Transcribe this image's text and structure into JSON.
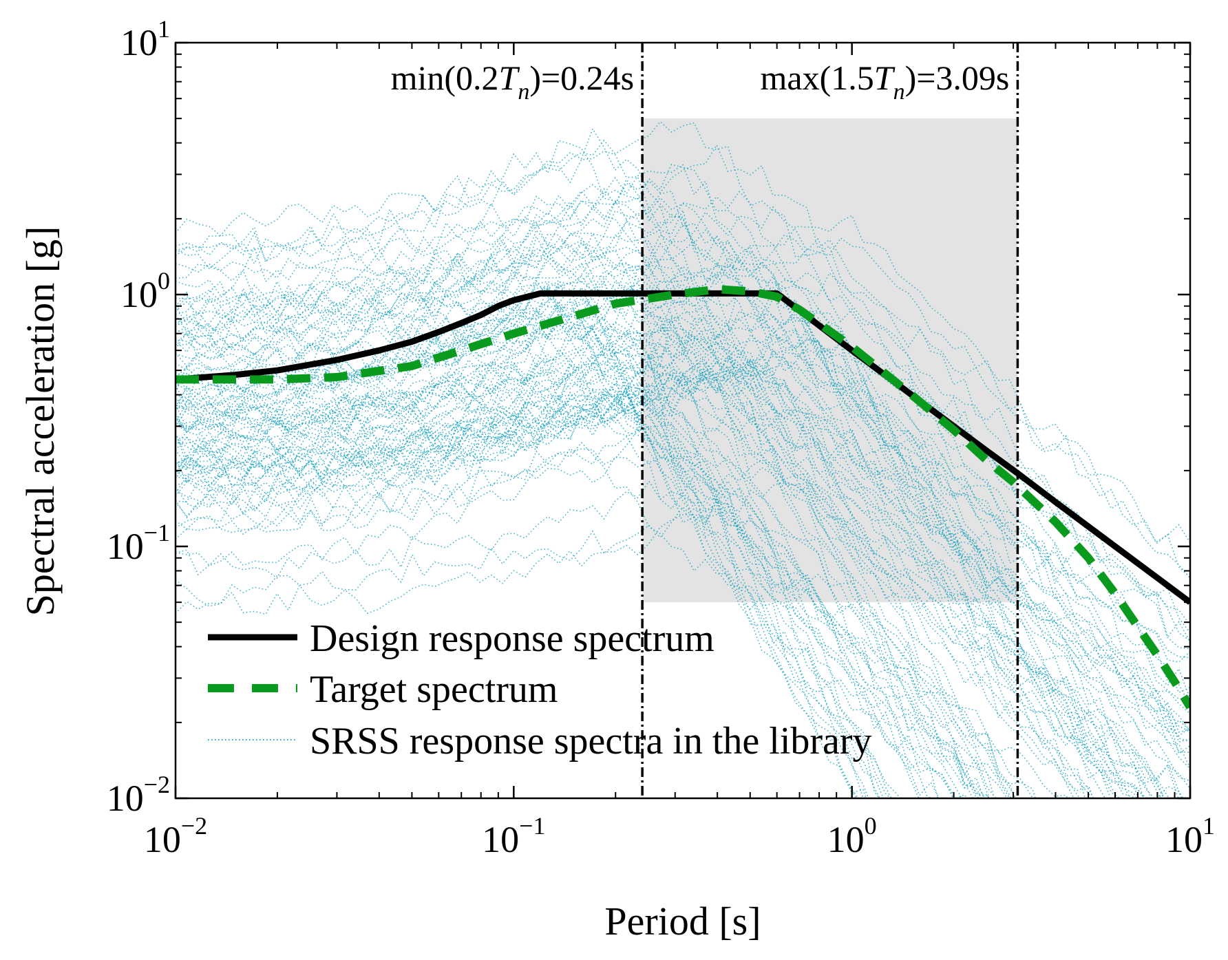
{
  "chart_data": {
    "type": "line",
    "xscale": "log",
    "yscale": "log",
    "xlabel": "Period [s]",
    "ylabel": "Spectral acceleration [g]",
    "xlim": [
      0.01,
      10
    ],
    "ylim": [
      0.01,
      10
    ],
    "xticks": [
      {
        "value": 0.01,
        "base": "10",
        "exp": "−2"
      },
      {
        "value": 0.1,
        "base": "10",
        "exp": "−1"
      },
      {
        "value": 1,
        "base": "10",
        "exp": "0"
      },
      {
        "value": 10,
        "base": "10",
        "exp": "1"
      }
    ],
    "yticks": [
      {
        "value": 0.01,
        "base": "10",
        "exp": "−2"
      },
      {
        "value": 0.1,
        "base": "10",
        "exp": "−1"
      },
      {
        "value": 1,
        "base": "10",
        "exp": "0"
      },
      {
        "value": 10,
        "base": "10",
        "exp": "1"
      }
    ],
    "grid": false,
    "legend_position": "bottom-left",
    "colors": {
      "design": "#000000",
      "target": "#0a9a1e",
      "srss": "#1aa3bf",
      "band": "#e3e3e3"
    },
    "period_range": {
      "t_min": 0.24,
      "t_max": 3.09,
      "band_y_range": [
        0.06,
        5.0
      ],
      "label_min": "min(0.2",
      "label_max": "max(1.5",
      "label_T": "T",
      "label_sub": "n",
      "value_min": ")=0.24s",
      "value_max": ")=3.09s"
    },
    "series": [
      {
        "name": "Design response spectrum",
        "style": "solid",
        "x": [
          0.01,
          0.015,
          0.02,
          0.03,
          0.04,
          0.05,
          0.06,
          0.07,
          0.08,
          0.09,
          0.1,
          0.12,
          0.2,
          0.3,
          0.4,
          0.6,
          1.0,
          1.5,
          2.0,
          2.5,
          3.09,
          4,
          6,
          8,
          10
        ],
        "y": [
          0.46,
          0.48,
          0.5,
          0.55,
          0.6,
          0.65,
          0.71,
          0.77,
          0.83,
          0.9,
          0.95,
          1.01,
          1.01,
          1.01,
          1.01,
          1.01,
          0.6,
          0.4,
          0.3,
          0.24,
          0.195,
          0.15,
          0.1,
          0.075,
          0.06
        ]
      },
      {
        "name": "Target spectrum",
        "style": "dashed",
        "x": [
          0.01,
          0.02,
          0.03,
          0.05,
          0.07,
          0.1,
          0.15,
          0.2,
          0.3,
          0.4,
          0.5,
          0.6,
          0.7,
          1.0,
          1.5,
          2.0,
          2.5,
          3.0,
          4,
          5,
          6,
          7,
          8,
          9,
          10
        ],
        "y": [
          0.46,
          0.46,
          0.47,
          0.52,
          0.6,
          0.7,
          0.82,
          0.92,
          1.0,
          1.05,
          1.03,
          0.98,
          0.87,
          0.62,
          0.4,
          0.29,
          0.22,
          0.18,
          0.125,
          0.09,
          0.065,
          0.048,
          0.037,
          0.029,
          0.023
        ]
      },
      {
        "name": "SRSS response spectra in the library",
        "style": "dotted"
      }
    ]
  }
}
